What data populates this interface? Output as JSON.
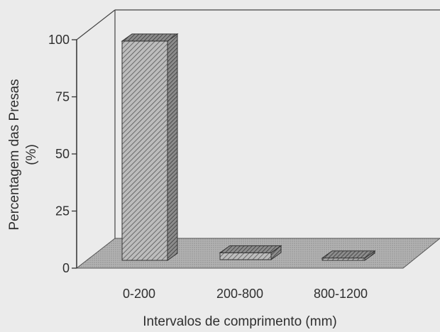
{
  "chart_data": {
    "type": "bar",
    "style": "3d",
    "title": "",
    "xlabel": "Intervalos de comprimento (mm)",
    "ylabel_lines": [
      "Percentagem das Presas",
      "(%)"
    ],
    "categories": [
      "0-200",
      "200-800",
      "800-1200"
    ],
    "values": [
      96,
      3,
      1
    ],
    "ylim": [
      0,
      100
    ],
    "yticks": [
      "0",
      "25",
      "50",
      "75",
      "100"
    ],
    "grid": false,
    "legend": "none",
    "colors": {
      "bar_fill": "#bdbdbd",
      "bar_hatch": "#555555",
      "floor_fill": "#a8a8a8",
      "axis": "#333333",
      "background": "#ebebeb"
    }
  }
}
